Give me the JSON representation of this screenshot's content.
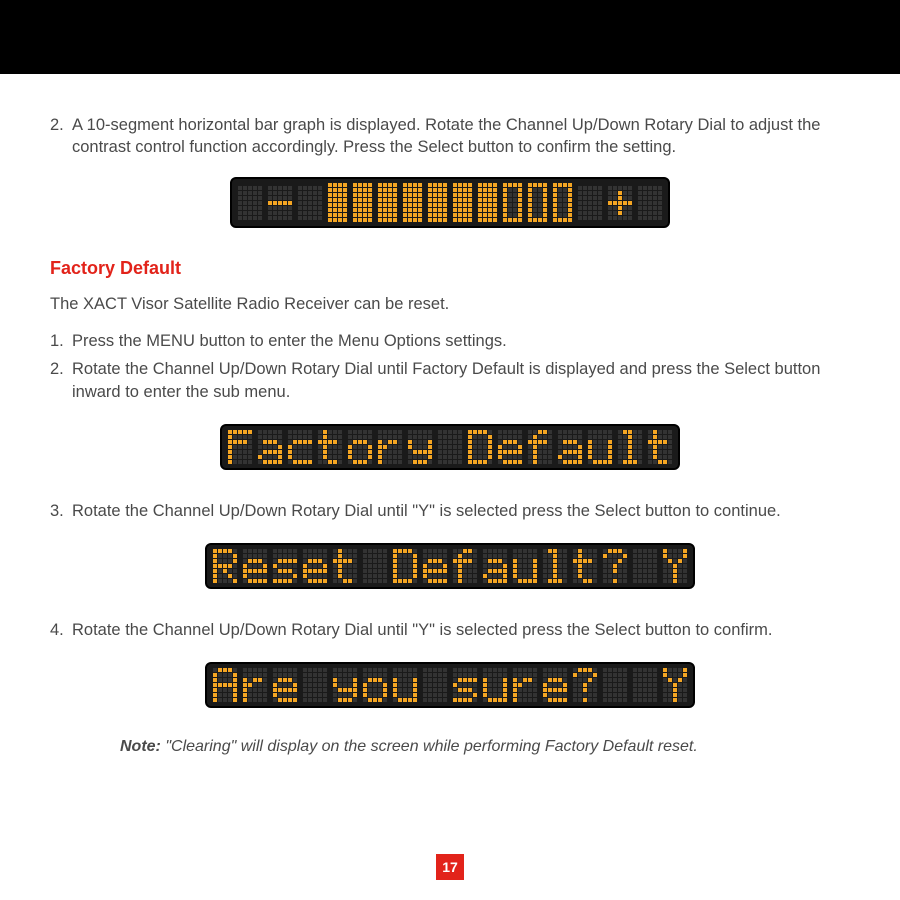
{
  "topbar_color": "#000000",
  "page_number": "17",
  "steps_top": {
    "num": "2.",
    "text": "A 10-segment horizontal bar graph is displayed. Rotate the Channel Up/Down Rotary Dial to adjust the contrast control function accordingly. Press the Select button to confirm the setting."
  },
  "bargraph": {
    "minus": "-",
    "plus": "+",
    "segments_filled": 7,
    "segments_total": 10
  },
  "section_heading": "Factory Default",
  "section_intro": "The XACT Visor Satellite Radio Receiver can be reset.",
  "fd_steps": [
    {
      "num": "1.",
      "text": "Press the MENU button to enter the Menu Options settings."
    },
    {
      "num": "2.",
      "text": "Rotate the Channel Up/Down Rotary Dial until Factory Default is displayed and press the Select button inward to enter the sub menu."
    },
    {
      "num": "3.",
      "text": "Rotate the Channel Up/Down Rotary Dial until \"Y\" is selected press the Select button to continue."
    },
    {
      "num": "4.",
      "text": "Rotate the Channel Up/Down Rotary Dial until \"Y\" is selected press the Select button to confirm."
    }
  ],
  "lcd_texts": {
    "factory": "Factory Default",
    "reset": "Reset Default? Y",
    "sure": "Are you sure?  Y"
  },
  "note": {
    "label": "Note:",
    "text": " \"Clearing\" will display on the screen while performing Factory Default reset."
  },
  "colors": {
    "lcd_bg": "#1a1a1a",
    "dot_off": "#333333",
    "dot_on": "#f5a623",
    "heading": "#e2231a",
    "body": "#4a4a4a"
  }
}
